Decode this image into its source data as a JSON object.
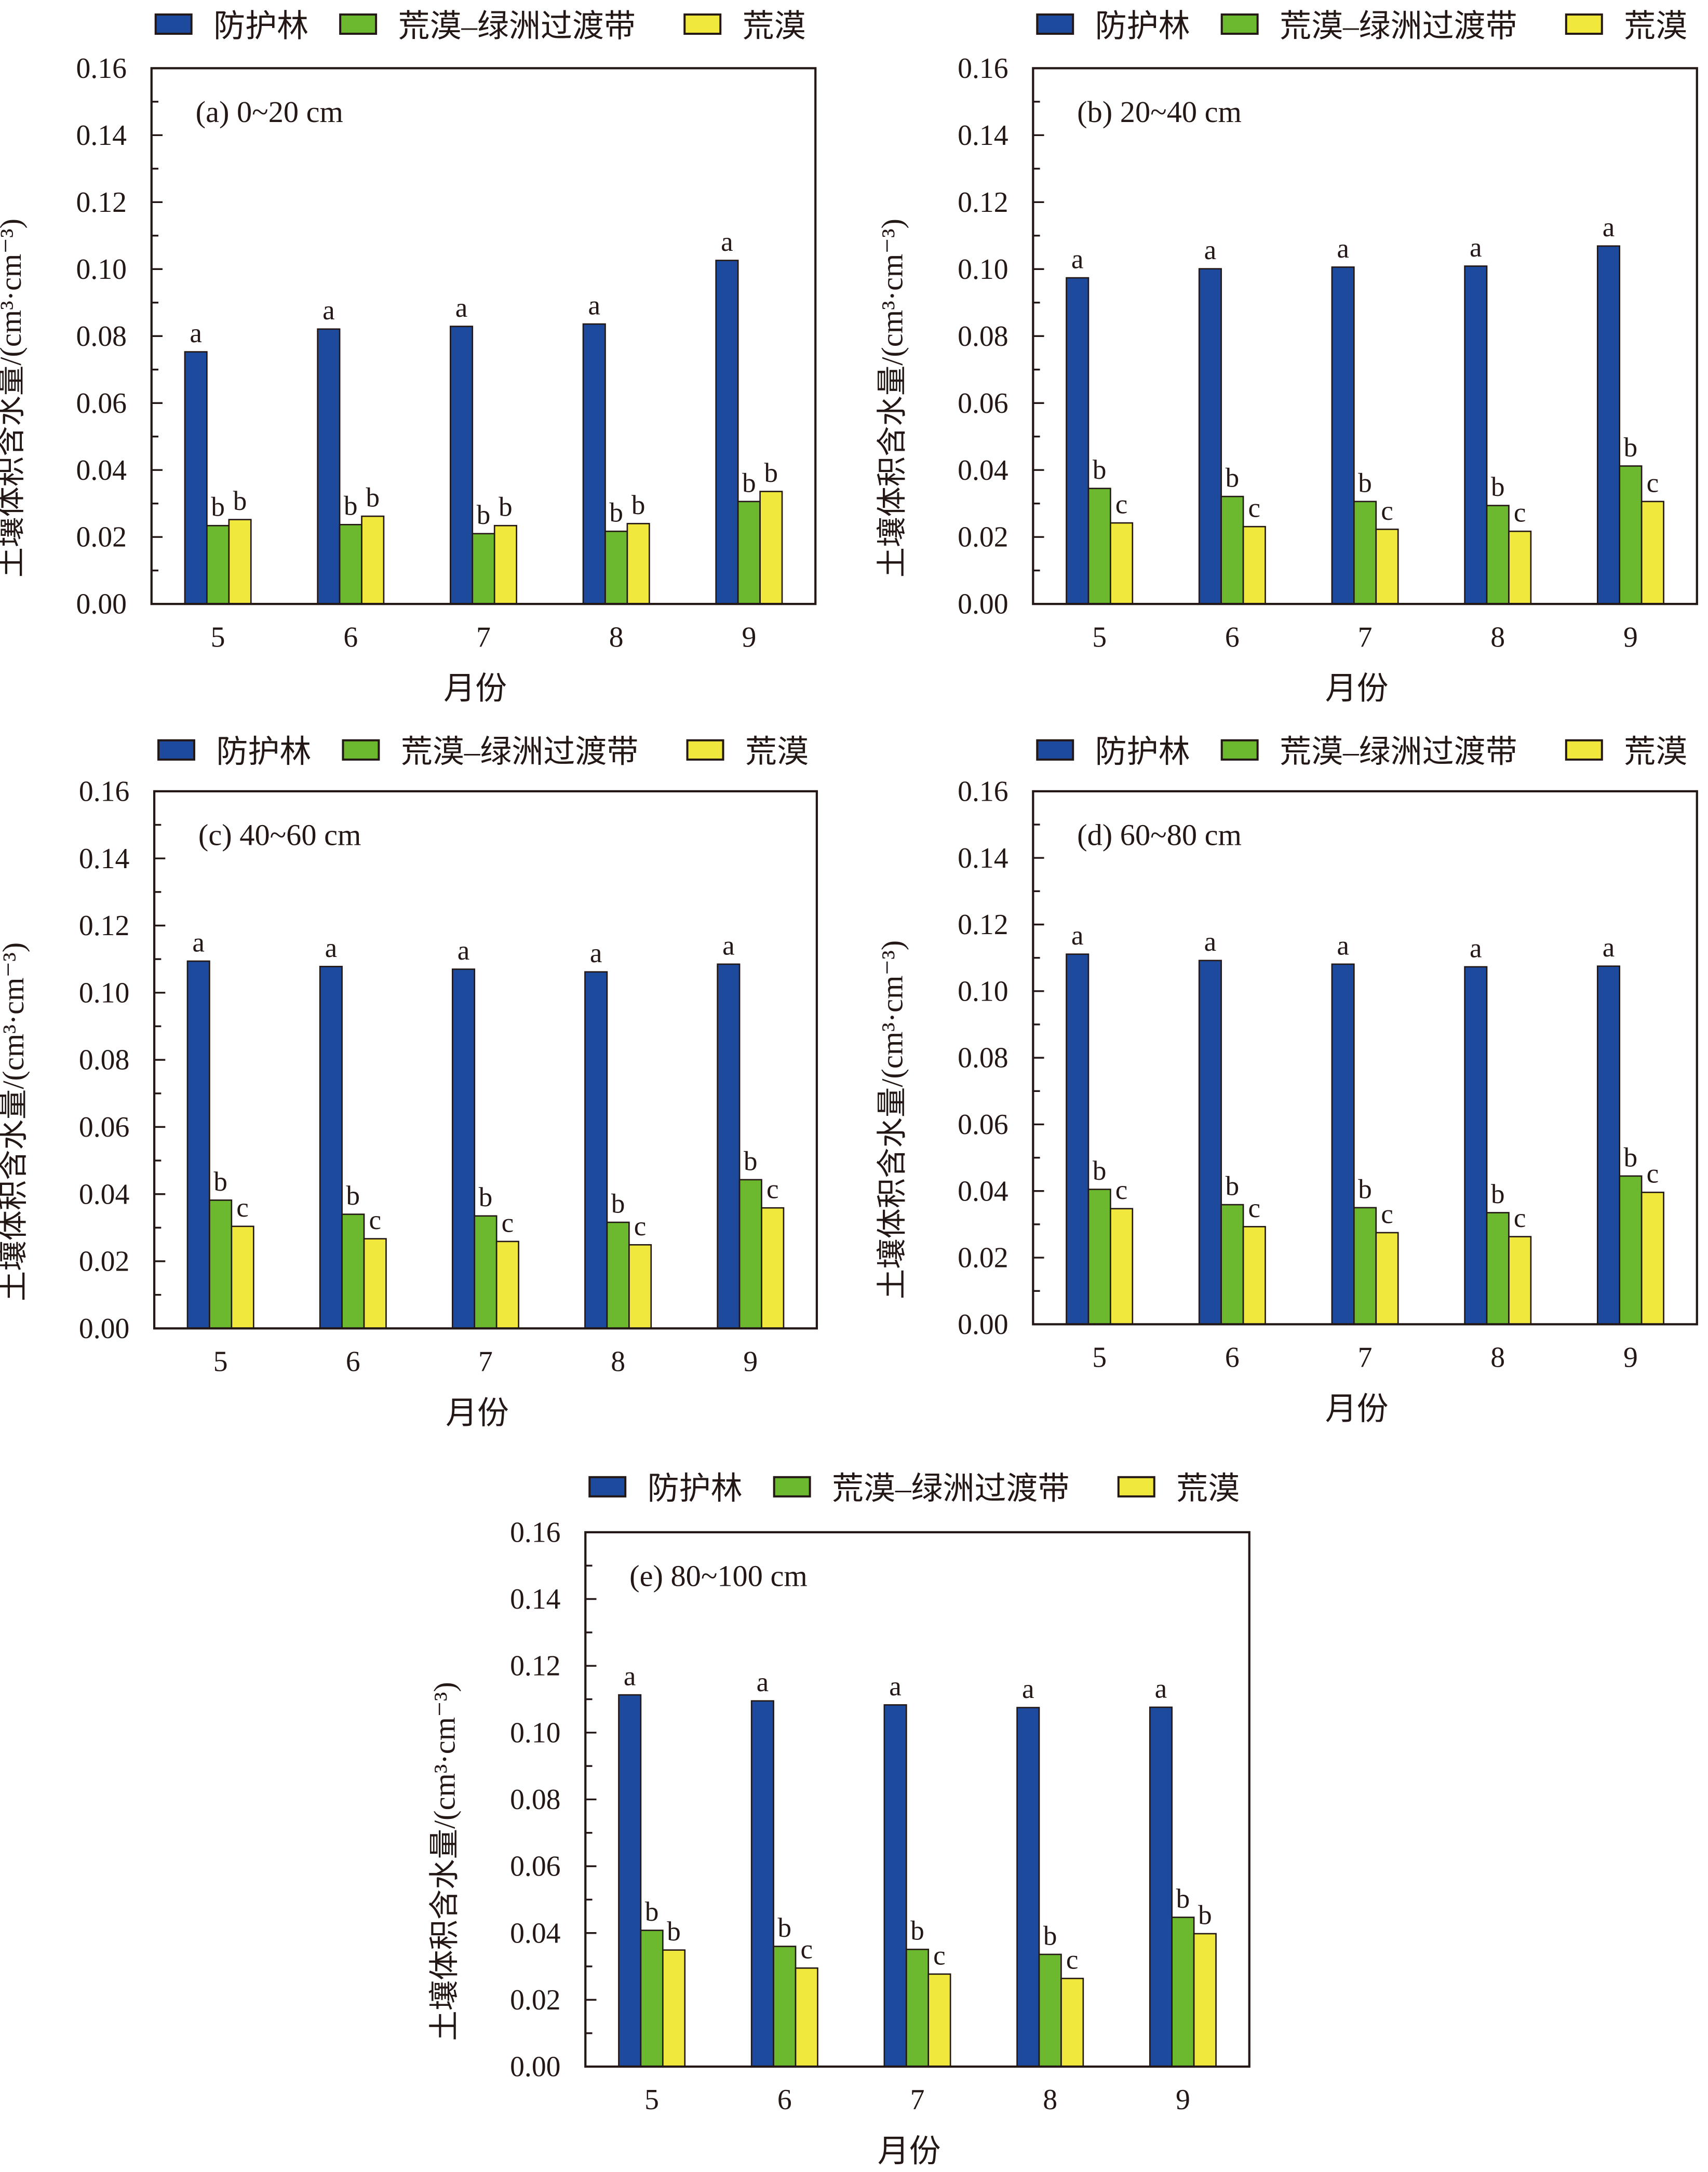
{
  "colors": {
    "防护林": "#1d4a9c",
    "荒漠–绿洲过渡带": "#6cb92f",
    "荒漠": "#f0e83c",
    "axis": "#231815"
  },
  "chart_data": [
    {
      "type": "bar",
      "panel_label": "(a) 0~20 cm",
      "categories": [
        "5",
        "6",
        "7",
        "8",
        "9"
      ],
      "xlabel": "月份",
      "ylabel": "土壤体积含水量/(cm³·cm⁻³)",
      "ylim": [
        0,
        0.16
      ],
      "yticks": [
        "0.00",
        "0.02",
        "0.04",
        "0.06",
        "0.08",
        "0.10",
        "0.12",
        "0.14",
        "0.16"
      ],
      "legend": "top",
      "series": [
        {
          "name": "防护林",
          "values": [
            0.0753,
            0.0821,
            0.0829,
            0.0836,
            0.1026
          ],
          "letters": [
            "a",
            "a",
            "a",
            "a",
            "a"
          ]
        },
        {
          "name": "荒漠–绿洲过渡带",
          "values": [
            0.0234,
            0.0237,
            0.021,
            0.0217,
            0.0306
          ],
          "letters": [
            "b",
            "b",
            "b",
            "b",
            "b"
          ]
        },
        {
          "name": "荒漠",
          "values": [
            0.0252,
            0.0262,
            0.0234,
            0.024,
            0.0336
          ],
          "letters": [
            "b",
            "b",
            "b",
            "b",
            "b"
          ]
        }
      ]
    },
    {
      "type": "bar",
      "panel_label": "(b) 20~40 cm",
      "categories": [
        "5",
        "6",
        "7",
        "8",
        "9"
      ],
      "xlabel": "月份",
      "ylabel": "土壤体积含水量/(cm³·cm⁻³)",
      "ylim": [
        0,
        0.16
      ],
      "yticks": [
        "0.00",
        "0.02",
        "0.04",
        "0.06",
        "0.08",
        "0.10",
        "0.12",
        "0.14",
        "0.16"
      ],
      "legend": "top",
      "series": [
        {
          "name": "防护林",
          "values": [
            0.0974,
            0.1001,
            0.1006,
            0.1009,
            0.1069
          ],
          "letters": [
            "a",
            "a",
            "a",
            "a",
            "a"
          ]
        },
        {
          "name": "荒漠–绿洲过渡带",
          "values": [
            0.0345,
            0.0321,
            0.0306,
            0.0294,
            0.0412
          ],
          "letters": [
            "b",
            "b",
            "b",
            "b",
            "b"
          ]
        },
        {
          "name": "荒漠",
          "values": [
            0.0242,
            0.0231,
            0.0223,
            0.0217,
            0.0306
          ],
          "letters": [
            "c",
            "c",
            "c",
            "c",
            "c"
          ]
        }
      ]
    },
    {
      "type": "bar",
      "panel_label": "(c) 40~60 cm",
      "categories": [
        "5",
        "6",
        "7",
        "8",
        "9"
      ],
      "xlabel": "月份",
      "ylabel": "土壤体积含水量/(cm³·cm⁻³)",
      "ylim": [
        0,
        0.16
      ],
      "yticks": [
        "0.00",
        "0.02",
        "0.04",
        "0.06",
        "0.08",
        "0.10",
        "0.12",
        "0.14",
        "0.16"
      ],
      "legend": "top",
      "series": [
        {
          "name": "防护林",
          "values": [
            0.1094,
            0.1078,
            0.107,
            0.1062,
            0.1085
          ],
          "letters": [
            "a",
            "a",
            "a",
            "a",
            "a"
          ]
        },
        {
          "name": "荒漠–绿洲过渡带",
          "values": [
            0.0382,
            0.034,
            0.0335,
            0.0316,
            0.0443
          ],
          "letters": [
            "b",
            "b",
            "b",
            "b",
            "b"
          ]
        },
        {
          "name": "荒漠",
          "values": [
            0.0304,
            0.0267,
            0.0259,
            0.0249,
            0.0359
          ],
          "letters": [
            "c",
            "c",
            "c",
            "c",
            "c"
          ]
        }
      ]
    },
    {
      "type": "bar",
      "panel_label": "(d) 60~80 cm",
      "categories": [
        "5",
        "6",
        "7",
        "8",
        "9"
      ],
      "xlabel": "月份",
      "ylabel": "土壤体积含水量/(cm³·cm⁻³)",
      "ylim": [
        0,
        0.16
      ],
      "yticks": [
        "0.00",
        "0.02",
        "0.04",
        "0.06",
        "0.08",
        "0.10",
        "0.12",
        "0.14",
        "0.16"
      ],
      "legend": "top",
      "series": [
        {
          "name": "防护林",
          "values": [
            0.1111,
            0.1092,
            0.1081,
            0.1073,
            0.1075
          ],
          "letters": [
            "a",
            "a",
            "a",
            "a",
            "a"
          ]
        },
        {
          "name": "荒漠–绿洲过渡带",
          "values": [
            0.0405,
            0.0359,
            0.035,
            0.0335,
            0.0445
          ],
          "letters": [
            "b",
            "b",
            "b",
            "b",
            "b"
          ]
        },
        {
          "name": "荒漠",
          "values": [
            0.0347,
            0.0293,
            0.0275,
            0.0263,
            0.0396
          ],
          "letters": [
            "c",
            "c",
            "c",
            "c",
            "c"
          ]
        }
      ]
    },
    {
      "type": "bar",
      "panel_label": "(e) 80~100 cm",
      "categories": [
        "5",
        "6",
        "7",
        "8",
        "9"
      ],
      "xlabel": "月份",
      "ylabel": "土壤体积含水量/(cm³·cm⁻³)",
      "ylim": [
        0,
        0.16
      ],
      "yticks": [
        "0.00",
        "0.02",
        "0.04",
        "0.06",
        "0.08",
        "0.10",
        "0.12",
        "0.14",
        "0.16"
      ],
      "legend": "top",
      "series": [
        {
          "name": "防护林",
          "values": [
            0.1113,
            0.1095,
            0.1083,
            0.1075,
            0.1076
          ],
          "letters": [
            "a",
            "a",
            "a",
            "a",
            "a"
          ]
        },
        {
          "name": "荒漠–绿洲过渡带",
          "values": [
            0.0408,
            0.036,
            0.0351,
            0.0336,
            0.0447
          ],
          "letters": [
            "b",
            "b",
            "b",
            "b",
            "b"
          ]
        },
        {
          "name": "荒漠",
          "values": [
            0.0349,
            0.0295,
            0.0277,
            0.0264,
            0.0398
          ],
          "letters": [
            "b",
            "c",
            "c",
            "c",
            "b"
          ]
        }
      ]
    }
  ]
}
